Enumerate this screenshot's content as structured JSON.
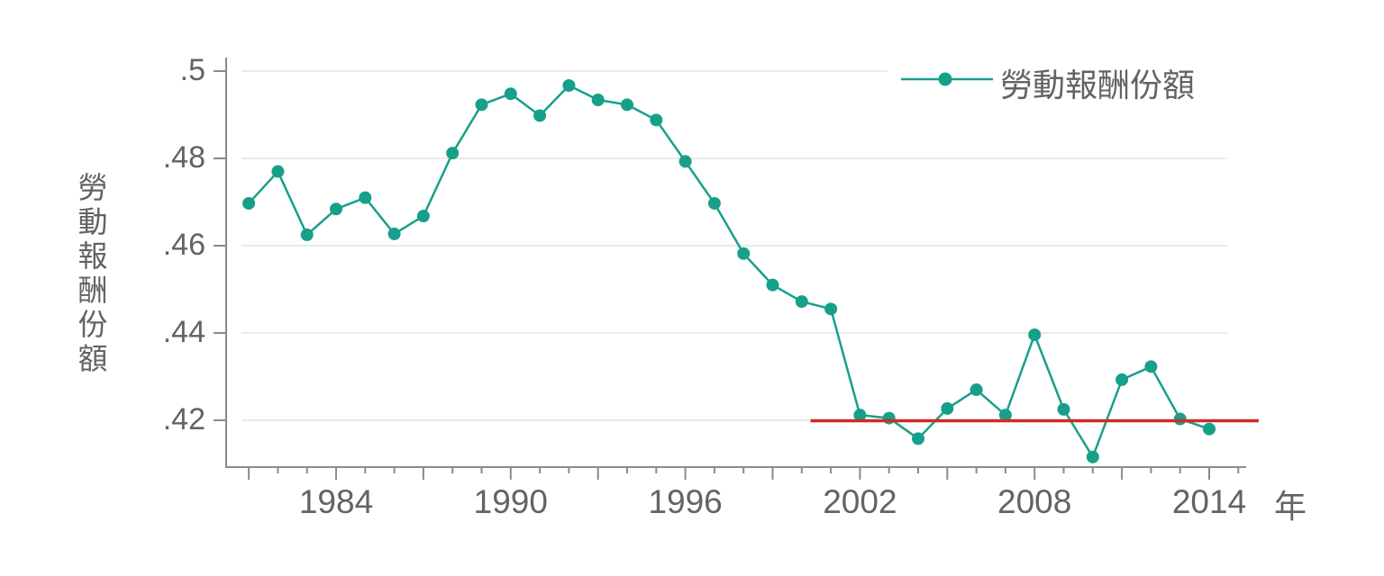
{
  "chart_data": {
    "type": "line",
    "title": "",
    "xlabel": "年",
    "ylabel": "勞動報酬份額",
    "legend": {
      "label": "勞動報酬份額",
      "position": "top-right"
    },
    "grid": "horizontal",
    "x": [
      1981,
      1982,
      1983,
      1984,
      1985,
      1986,
      1987,
      1988,
      1989,
      1990,
      1991,
      1992,
      1993,
      1994,
      1995,
      1996,
      1997,
      1998,
      1999,
      2000,
      2001,
      2002,
      2003,
      2004,
      2005,
      2006,
      2007,
      2008,
      2009,
      2010,
      2011,
      2012,
      2013,
      2014
    ],
    "series": [
      {
        "name": "勞動報酬份額",
        "values": [
          0.4697,
          0.477,
          0.4625,
          0.4684,
          0.471,
          0.4627,
          0.4668,
          0.4812,
          0.4923,
          0.4948,
          0.4898,
          0.4967,
          0.4934,
          0.4923,
          0.4888,
          0.4793,
          0.4697,
          0.4582,
          0.451,
          0.4472,
          0.4455,
          0.4212,
          0.4205,
          0.4158,
          0.4227,
          0.427,
          0.4212,
          0.4396,
          0.4225,
          0.4116,
          0.4293,
          0.4323,
          0.4203,
          0.418
        ]
      }
    ],
    "refline": {
      "value": 0.42,
      "x_start": 2000.3,
      "x_end": 2015.7
    },
    "yticks": {
      "labels": [
        ".42",
        ".44",
        ".46",
        ".48",
        ".5"
      ],
      "values": [
        0.42,
        0.44,
        0.46,
        0.48,
        0.5
      ]
    },
    "xticks": {
      "labeled": [
        {
          "label": "1984",
          "year": 1984
        },
        {
          "label": "1990",
          "year": 1990
        },
        {
          "label": "1996",
          "year": 1996
        },
        {
          "label": "2002",
          "year": 2002
        },
        {
          "label": "2008",
          "year": 2008
        },
        {
          "label": "2014",
          "year": 2014
        }
      ],
      "minor_start": 1981,
      "minor_end": 2015,
      "major_every": 3
    },
    "ylim": [
      0.409,
      0.503
    ],
    "xlim": [
      1980.3,
      2015.3
    ],
    "colors": {
      "series": "#17a089",
      "refline": "#cf2b27",
      "grid": "#e3e3e3",
      "axis": "#8a8a8a",
      "text": "#636363",
      "background": "#ffffff"
    }
  }
}
